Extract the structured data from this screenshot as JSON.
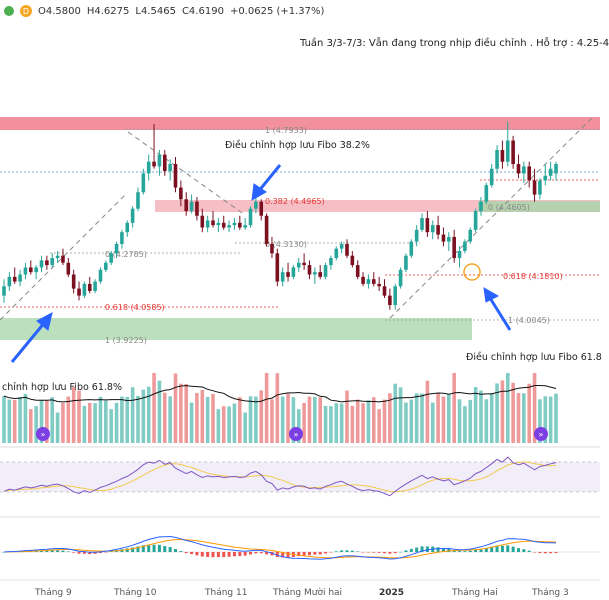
{
  "header": {
    "d_badge": "D",
    "ohlc": [
      "O4.5800",
      "H4.6275",
      "L4.5465",
      "C4.6190",
      "+0.0625 (+1.37%)"
    ]
  },
  "note": "Tuần 3/3-7/3: Vẫn đang trong nhịp điều chỉnh . Hỗ trợ : 4.25-4",
  "annotations": {
    "fibo382": "Điều chỉnh hợp lưu Fibo 38.2%",
    "fibo618_right": "Điều chỉnh hợp lưu Fibo 61.8",
    "fibo618_left": "chỉnh hợp lưu Fibo 61.8%"
  },
  "fib_labels": [
    {
      "text": "1 (4.7933)",
      "color": "#888888"
    },
    {
      "text": "0.382 (4.4965)",
      "color": "#e53935"
    },
    {
      "text": "0 (4.3130)",
      "color": "#888888"
    },
    {
      "text": "0 (4.2785)",
      "color": "#888888"
    },
    {
      "text": "0.618 (4.0585)",
      "color": "#e53935"
    },
    {
      "text": "1 (3.9225)",
      "color": "#888888"
    },
    {
      "text": "0 (4.4605)",
      "color": "#888888"
    },
    {
      "text": "0.618 (4.1810)",
      "color": "#e53935"
    },
    {
      "text": "1 (4.0045)",
      "color": "#888888"
    }
  ],
  "x_axis_labels": [
    "Tháng 9",
    "Tháng 10",
    "Tháng 11",
    "Tháng Mười hai",
    "2025",
    "Tháng Hai",
    "Tháng 3"
  ],
  "colors": {
    "up": "#26a69a",
    "down": "#7a1020",
    "resistance_zone": "#ef6b7e",
    "support_zone": "#a5d6a7",
    "arrow": "#2962ff",
    "rsi": "#7e57c2",
    "rsi_ma": "#f2c94c",
    "macd": "#2962ff",
    "signal": "#ff9800"
  },
  "chart_data": {
    "type": "candlestick",
    "price_range": [
      3.85,
      4.85
    ],
    "candles": [
      [
        4.06,
        4.13,
        4.03,
        4.1
      ],
      [
        4.1,
        4.16,
        4.08,
        4.14
      ],
      [
        4.14,
        4.18,
        4.11,
        4.12
      ],
      [
        4.12,
        4.17,
        4.1,
        4.15
      ],
      [
        4.15,
        4.2,
        4.13,
        4.18
      ],
      [
        4.18,
        4.21,
        4.15,
        4.16
      ],
      [
        4.16,
        4.19,
        4.13,
        4.18
      ],
      [
        4.18,
        4.23,
        4.16,
        4.21
      ],
      [
        4.21,
        4.23,
        4.17,
        4.19
      ],
      [
        4.19,
        4.24,
        4.18,
        4.22
      ],
      [
        4.22,
        4.25,
        4.2,
        4.23
      ],
      [
        4.23,
        4.26,
        4.19,
        4.2
      ],
      [
        4.2,
        4.22,
        4.14,
        4.15
      ],
      [
        4.15,
        4.17,
        4.07,
        4.09
      ],
      [
        4.09,
        4.12,
        4.04,
        4.06
      ],
      [
        4.06,
        4.12,
        4.05,
        4.11
      ],
      [
        4.11,
        4.14,
        4.07,
        4.08
      ],
      [
        4.08,
        4.13,
        4.07,
        4.12
      ],
      [
        4.12,
        4.18,
        4.11,
        4.17
      ],
      [
        4.17,
        4.21,
        4.16,
        4.2
      ],
      [
        4.2,
        4.25,
        4.19,
        4.24
      ],
      [
        4.24,
        4.29,
        4.22,
        4.28
      ],
      [
        4.28,
        4.34,
        4.26,
        4.33
      ],
      [
        4.33,
        4.38,
        4.31,
        4.37
      ],
      [
        4.37,
        4.44,
        4.35,
        4.43
      ],
      [
        4.43,
        4.52,
        4.42,
        4.5
      ],
      [
        4.5,
        4.6,
        4.49,
        4.58
      ],
      [
        4.58,
        4.66,
        4.55,
        4.63
      ],
      [
        4.63,
        4.79,
        4.6,
        4.61
      ],
      [
        4.61,
        4.68,
        4.57,
        4.66
      ],
      [
        4.66,
        4.68,
        4.57,
        4.59
      ],
      [
        4.59,
        4.64,
        4.55,
        4.62
      ],
      [
        4.62,
        4.65,
        4.5,
        4.52
      ],
      [
        4.52,
        4.55,
        4.44,
        4.47
      ],
      [
        4.47,
        4.5,
        4.4,
        4.42
      ],
      [
        4.42,
        4.49,
        4.41,
        4.46
      ],
      [
        4.46,
        4.48,
        4.38,
        4.4
      ],
      [
        4.4,
        4.43,
        4.33,
        4.35
      ],
      [
        4.35,
        4.4,
        4.33,
        4.38
      ],
      [
        4.38,
        4.42,
        4.35,
        4.36
      ],
      [
        4.36,
        4.39,
        4.33,
        4.37
      ],
      [
        4.37,
        4.4,
        4.34,
        4.35
      ],
      [
        4.35,
        4.38,
        4.33,
        4.36
      ],
      [
        4.36,
        4.39,
        4.34,
        4.37
      ],
      [
        4.37,
        4.4,
        4.34,
        4.35
      ],
      [
        4.35,
        4.39,
        4.34,
        4.36
      ],
      [
        4.36,
        4.44,
        4.35,
        4.43
      ],
      [
        4.43,
        4.49,
        4.41,
        4.46
      ],
      [
        4.46,
        4.47,
        4.38,
        4.4
      ],
      [
        4.4,
        4.41,
        4.27,
        4.28
      ],
      [
        4.28,
        4.31,
        4.22,
        4.24
      ],
      [
        4.24,
        4.26,
        4.1,
        4.12
      ],
      [
        4.12,
        4.18,
        4.1,
        4.16
      ],
      [
        4.16,
        4.2,
        4.12,
        4.14
      ],
      [
        4.14,
        4.19,
        4.13,
        4.18
      ],
      [
        4.18,
        4.22,
        4.16,
        4.2
      ],
      [
        4.2,
        4.24,
        4.17,
        4.19
      ],
      [
        4.19,
        4.21,
        4.13,
        4.15
      ],
      [
        4.15,
        4.18,
        4.11,
        4.16
      ],
      [
        4.16,
        4.19,
        4.13,
        4.14
      ],
      [
        4.14,
        4.2,
        4.13,
        4.19
      ],
      [
        4.19,
        4.23,
        4.17,
        4.22
      ],
      [
        4.22,
        4.27,
        4.21,
        4.26
      ],
      [
        4.26,
        4.29,
        4.24,
        4.28
      ],
      [
        4.28,
        4.3,
        4.22,
        4.23
      ],
      [
        4.23,
        4.25,
        4.18,
        4.19
      ],
      [
        4.19,
        4.21,
        4.13,
        4.14
      ],
      [
        4.14,
        4.16,
        4.1,
        4.11
      ],
      [
        4.11,
        4.15,
        4.09,
        4.13
      ],
      [
        4.13,
        4.16,
        4.1,
        4.11
      ],
      [
        4.11,
        4.14,
        4.08,
        4.1
      ],
      [
        4.1,
        4.13,
        4.05,
        4.06
      ],
      [
        4.06,
        4.09,
        4.0,
        4.02
      ],
      [
        4.02,
        4.11,
        4.0,
        4.1
      ],
      [
        4.1,
        4.18,
        4.09,
        4.17
      ],
      [
        4.17,
        4.24,
        4.16,
        4.23
      ],
      [
        4.23,
        4.3,
        4.22,
        4.29
      ],
      [
        4.29,
        4.36,
        4.27,
        4.34
      ],
      [
        4.34,
        4.41,
        4.33,
        4.39
      ],
      [
        4.39,
        4.42,
        4.31,
        4.33
      ],
      [
        4.33,
        4.38,
        4.3,
        4.36
      ],
      [
        4.36,
        4.4,
        4.3,
        4.32
      ],
      [
        4.32,
        4.35,
        4.27,
        4.29
      ],
      [
        4.29,
        4.33,
        4.25,
        4.31
      ],
      [
        4.31,
        4.34,
        4.2,
        4.22
      ],
      [
        4.22,
        4.27,
        4.18,
        4.25
      ],
      [
        4.25,
        4.3,
        4.24,
        4.29
      ],
      [
        4.29,
        4.35,
        4.28,
        4.34
      ],
      [
        4.34,
        4.43,
        4.33,
        4.42
      ],
      [
        4.42,
        4.48,
        4.4,
        4.46
      ],
      [
        4.46,
        4.54,
        4.45,
        4.53
      ],
      [
        4.53,
        4.62,
        4.52,
        4.6
      ],
      [
        4.6,
        4.7,
        4.58,
        4.68
      ],
      [
        4.68,
        4.72,
        4.6,
        4.63
      ],
      [
        4.63,
        4.8,
        4.61,
        4.72
      ],
      [
        4.72,
        4.74,
        4.6,
        4.62
      ],
      [
        4.62,
        4.66,
        4.56,
        4.58
      ],
      [
        4.58,
        4.63,
        4.54,
        4.61
      ],
      [
        4.61,
        4.63,
        4.52,
        4.55
      ],
      [
        4.55,
        4.6,
        4.46,
        4.49
      ],
      [
        4.49,
        4.56,
        4.47,
        4.55
      ],
      [
        4.55,
        4.62,
        4.53,
        4.57
      ],
      [
        4.57,
        4.63,
        4.55,
        4.6
      ],
      [
        4.58,
        4.63,
        4.55,
        4.62
      ]
    ]
  }
}
